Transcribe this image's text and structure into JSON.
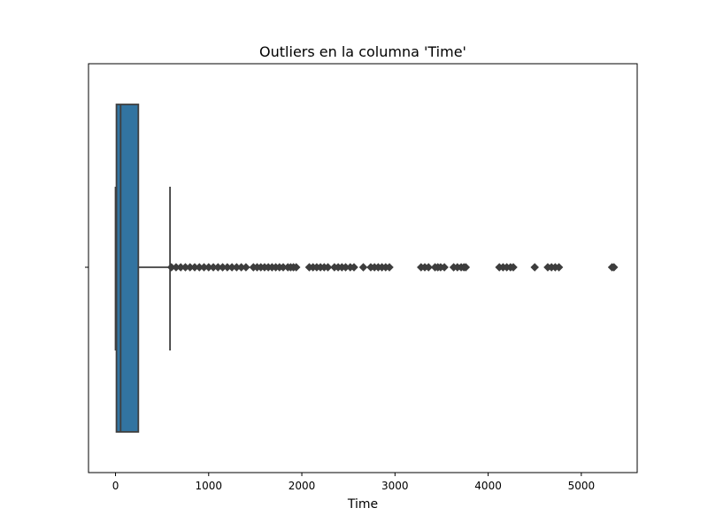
{
  "chart_data": {
    "type": "boxplot",
    "title": "Outliers en la columna 'Time'",
    "xlabel": "Time",
    "ylabel": "",
    "xlim": [
      -290,
      5600
    ],
    "xticks": [
      0,
      1000,
      2000,
      3000,
      4000,
      5000
    ],
    "xtick_labels": [
      "0",
      "1000",
      "2000",
      "3000",
      "4000",
      "5000"
    ],
    "grid": false,
    "box": {
      "whisker_low": 0,
      "q1": 10,
      "median": 55,
      "q3": 245,
      "whisker_high": 585,
      "color": "#3274a1",
      "edge_color": "#3f3f3f"
    },
    "outliers": [
      600,
      650,
      700,
      750,
      800,
      850,
      900,
      950,
      1000,
      1050,
      1100,
      1150,
      1200,
      1250,
      1300,
      1350,
      1400,
      1480,
      1520,
      1560,
      1600,
      1640,
      1680,
      1720,
      1760,
      1800,
      1850,
      1880,
      1910,
      1940,
      2080,
      2120,
      2160,
      2200,
      2240,
      2280,
      2350,
      2390,
      2430,
      2470,
      2520,
      2560,
      2660,
      2740,
      2780,
      2820,
      2860,
      2900,
      2940,
      3280,
      3320,
      3360,
      3430,
      3460,
      3490,
      3530,
      3630,
      3670,
      3710,
      3740,
      3760,
      4120,
      4160,
      4200,
      4240,
      4270,
      4500,
      4640,
      4680,
      4720,
      4760,
      5330,
      5350
    ]
  }
}
